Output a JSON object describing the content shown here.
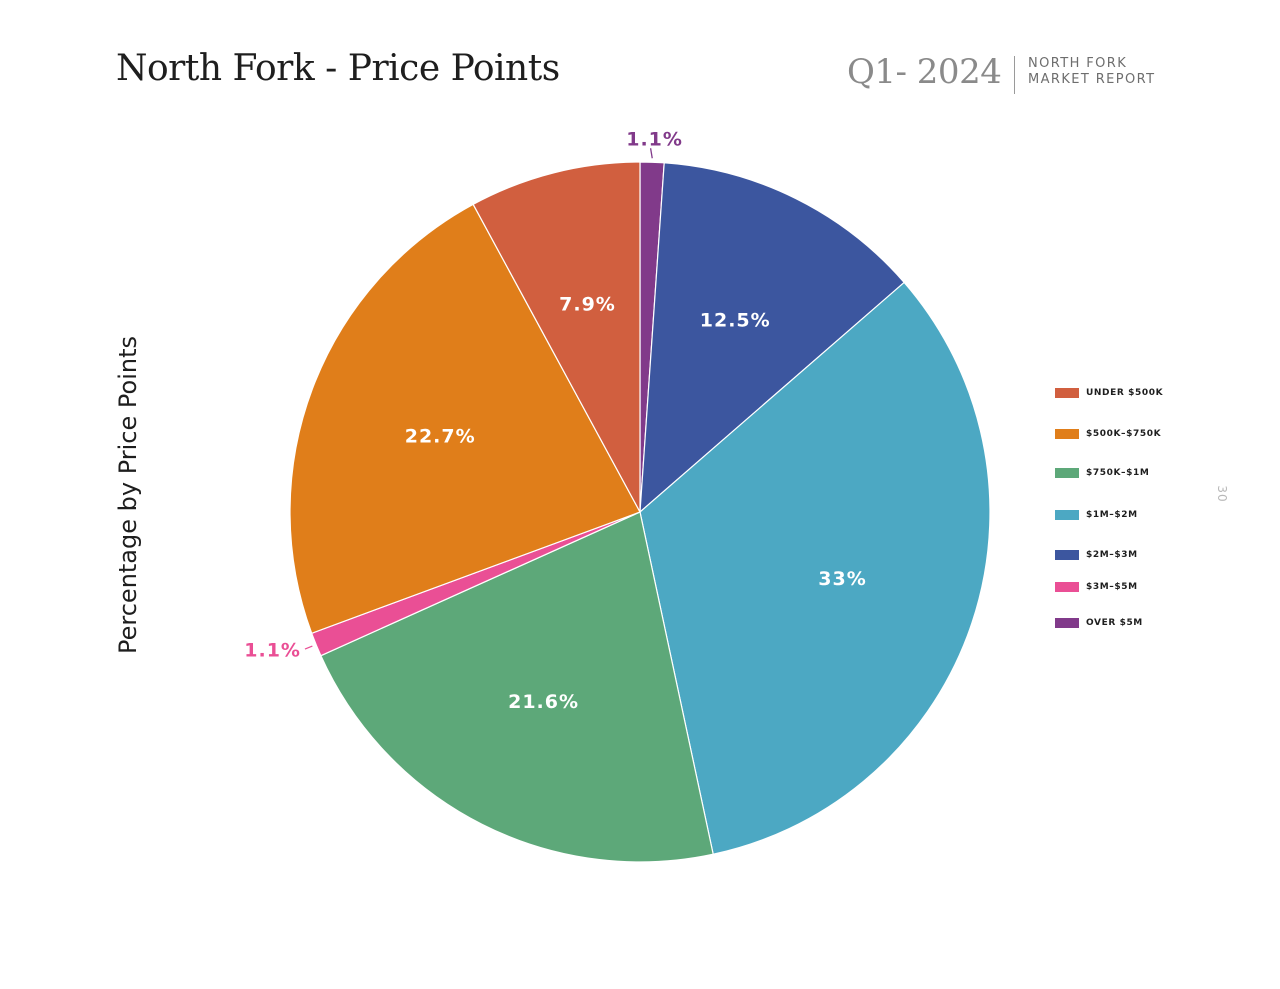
{
  "header": {
    "title": "North Fork - Price Points",
    "quarter": "Q1- 2024",
    "report_line1": "NORTH FORK",
    "report_line2": "MARKET REPORT"
  },
  "page_number": "30",
  "chart_data": {
    "type": "pie",
    "title": "North Fork - Price Points",
    "ylabel": "Percentage by Price Points",
    "unit": "%",
    "start_angle_deg": 0,
    "direction": "clockwise",
    "legend_position": "right",
    "slices": [
      {
        "name": "OVER $5M",
        "value": 1.1,
        "label": "1.1%",
        "color": "#813a8a",
        "label_style": "outside"
      },
      {
        "name": "$2M–$3M",
        "value": 12.5,
        "label": "12.5%",
        "color": "#3c569f",
        "label_style": "inside"
      },
      {
        "name": "$1M–$2M",
        "value": 33,
        "label": "33%",
        "color": "#4ca8c3",
        "label_style": "inside"
      },
      {
        "name": "$750K–$1M",
        "value": 21.6,
        "label": "21.6%",
        "color": "#5da879",
        "label_style": "inside"
      },
      {
        "name": "$3M–$5M",
        "value": 1.1,
        "label": "1.1%",
        "color": "#ea4f95",
        "label_style": "outside"
      },
      {
        "name": "$500K–$750K",
        "value": 22.7,
        "label": "22.7%",
        "color": "#e07e1a",
        "label_style": "inside"
      },
      {
        "name": "UNDER $500K",
        "value": 7.9,
        "label": "7.9%",
        "color": "#d15f3f",
        "label_style": "inside"
      }
    ],
    "legend": [
      {
        "label": "UNDER $500K",
        "color": "#d15f3f"
      },
      {
        "label": "$500K–$750K",
        "color": "#e07e1a"
      },
      {
        "label": "$750K–$1M",
        "color": "#5da879"
      },
      {
        "label": "$1M–$2M",
        "color": "#4ca8c3"
      },
      {
        "label": "$2M–$3M",
        "color": "#3c569f"
      },
      {
        "label": "$3M–$5M",
        "color": "#ea4f95"
      },
      {
        "label": "OVER $5M",
        "color": "#813a8a"
      }
    ]
  }
}
